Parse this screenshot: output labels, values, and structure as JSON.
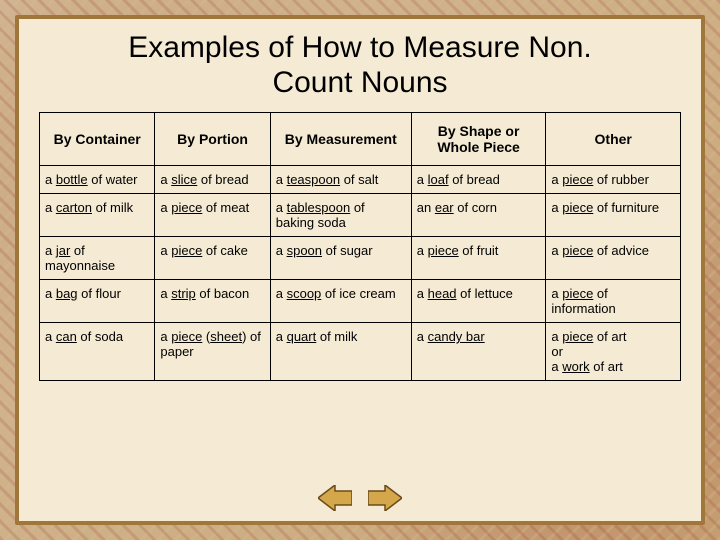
{
  "title_lines": [
    "Examples of How to Measure Non.",
    "Count Nouns"
  ],
  "colors": {
    "panel_bg": "#f5ebd4",
    "panel_border": "#a0763a",
    "table_border": "#000000",
    "arrow_fill": "#d4a84a",
    "arrow_stroke": "#6b4a1a"
  },
  "table": {
    "headers": [
      "By Container",
      "By Portion",
      "By Measurement",
      "By Shape or Whole Piece",
      "Other"
    ],
    "rows": [
      [
        {
          "pre": "a ",
          "u": "bottle",
          "post": " of water"
        },
        {
          "pre": "a ",
          "u": "slice",
          "post": " of bread"
        },
        {
          "pre": "a ",
          "u": "teaspoon",
          "post": " of salt"
        },
        {
          "pre": "a ",
          "u": "loaf",
          "post": " of bread"
        },
        {
          "pre": "a ",
          "u": "piece",
          "post": " of rubber"
        }
      ],
      [
        {
          "pre": "a ",
          "u": "carton",
          "post": " of milk"
        },
        {
          "pre": "a ",
          "u": "piece",
          "post": " of meat"
        },
        {
          "pre": "a ",
          "u": "tablespoon",
          "post": " of baking soda"
        },
        {
          "pre": "an ",
          "u": "ear",
          "post": " of corn"
        },
        {
          "pre": "a ",
          "u": "piece",
          "post": " of furniture"
        }
      ],
      [
        {
          "pre": "a ",
          "u": "jar",
          "post": " of mayonnaise"
        },
        {
          "pre": "a ",
          "u": "piece",
          "post": " of cake"
        },
        {
          "pre": "a ",
          "u": "spoon",
          "post": " of sugar"
        },
        {
          "pre": "a ",
          "u": "piece",
          "post": " of fruit"
        },
        {
          "pre": "a ",
          "u": "piece",
          "post": " of advice"
        }
      ],
      [
        {
          "pre": "a ",
          "u": "bag",
          "post": " of flour"
        },
        {
          "pre": "a ",
          "u": "strip",
          "post": " of bacon"
        },
        {
          "pre": "a ",
          "u": "scoop",
          "post": " of ice cream"
        },
        {
          "pre": "a ",
          "u": "head",
          "post": " of lettuce"
        },
        {
          "pre": "a ",
          "u": "piece",
          "post": " of information"
        }
      ],
      [
        {
          "pre": "a ",
          "u": "can",
          "post": " of soda"
        },
        {
          "pre": "a ",
          "u": "piece",
          "u2": "sheet",
          "mid": " (",
          "mid2": ") ",
          "post": "of paper"
        },
        {
          "pre": "a ",
          "u": "quart",
          "post": " of milk"
        },
        {
          "pre": "a ",
          "u": "candy bar",
          "post": ""
        },
        {
          "pre": "a ",
          "u": "piece",
          "post": " of art",
          "extra_lines": [
            "        or",
            "a ",
            "work",
            " of art"
          ],
          "extra_u": "work"
        }
      ]
    ],
    "col_widths_pct": [
      18,
      18,
      22,
      21,
      21
    ]
  },
  "nav": {
    "prev_label": "previous",
    "next_label": "next"
  }
}
